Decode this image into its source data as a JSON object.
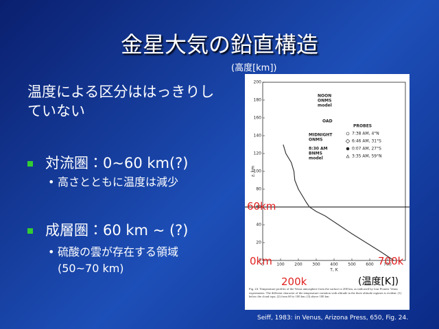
{
  "slide": {
    "title": "金星大気の鉛直構造",
    "intro": "温度による区分ははっきりしていない",
    "bullets": [
      {
        "text": "対流圏：0~60 km(?)",
        "sub": "高さとともに温度は減少"
      },
      {
        "text": "成層圏：60 km ~ (?)",
        "sub": "硫酸の雲が存在する領域(50~70 km)"
      }
    ],
    "credit": "Seiff, 1983: in Venus, Arizona Press, 650, Fig. 24."
  },
  "annotations": {
    "altitude_unit": "(高度[km])",
    "label_60km": "60km",
    "label_0km": "0km",
    "label_700k": "700k",
    "label_200k": "200k",
    "temp_unit": "(温度[K])"
  },
  "chart_data": {
    "type": "line",
    "xlabel": "T, K",
    "ylabel": "z, km",
    "xlim": [
      0,
      800
    ],
    "ylim": [
      0,
      200
    ],
    "xticks": [
      0,
      100,
      200,
      300,
      400,
      500,
      600,
      700
    ],
    "yticks": [
      0,
      20,
      40,
      60,
      80,
      100,
      120,
      140,
      160,
      180,
      200
    ],
    "model_labels": [
      [
        "NOON",
        "ONMS",
        "model"
      ],
      [
        "OAD"
      ],
      [
        "MIDNIGHT",
        "ONMS"
      ],
      [
        "8:30 AM",
        "BNMS",
        "model"
      ]
    ],
    "legend_title": "PROBES",
    "series": [
      {
        "name": "7:38 AM, 4°N",
        "color": "#333333",
        "x": [
          735,
          660,
          580,
          500,
          425,
          350,
          300,
          262,
          245,
          230,
          200,
          180,
          175,
          160,
          130,
          115
        ],
        "values": [
          0,
          10,
          20,
          30,
          40,
          50,
          55,
          60,
          65,
          70,
          80,
          90,
          100,
          110,
          120,
          130
        ]
      },
      {
        "name": "6:46 AM, 31°S",
        "color": "#333333",
        "x": [],
        "values": []
      },
      {
        "name": "0:07 AM, 27°S",
        "color": "#333333",
        "x": [],
        "values": []
      },
      {
        "name": "3:35 AM, 59°N",
        "color": "#333333",
        "x": [],
        "values": []
      }
    ],
    "caption": "Fig. 24. Temperature profiles of the Venus atmosphere from the surface to 200 km, as indicated by four Pioneer Venus experiments. The different character of the temperature variation with altitude in the three altitude regimes is evident: (1) below the cloud tops; (2) from 60 to 100 km; (3) above 100 km."
  }
}
